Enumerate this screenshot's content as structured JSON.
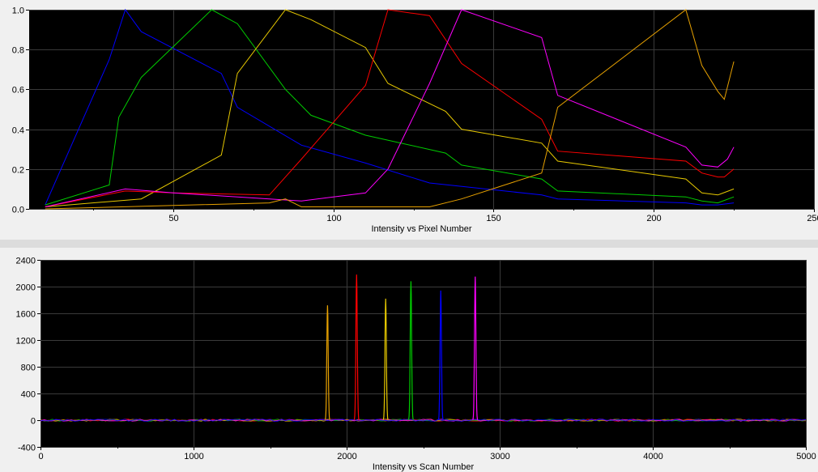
{
  "chart_data": [
    {
      "type": "line",
      "title": "",
      "xlabel": "Intensity vs Pixel Number",
      "ylabel": "",
      "xlim": [
        5,
        250
      ],
      "ylim": [
        0,
        1.0
      ],
      "xticks": [
        50,
        100,
        150,
        200,
        250
      ],
      "xtick_labels": [
        "50",
        "100",
        "150",
        "200",
        "250"
      ],
      "yticks": [
        0,
        0.2,
        0.4,
        0.6,
        0.8,
        1.0
      ],
      "ytick_labels": [
        "0.0",
        "0.2",
        "0.4",
        "0.6",
        "0.8",
        "1.0"
      ],
      "grid": true,
      "series": [
        {
          "color": "#0000ff",
          "x": [
            10,
            30,
            35,
            40,
            65,
            70,
            90,
            110,
            130,
            165,
            170,
            210,
            215,
            220,
            225
          ],
          "y": [
            0.02,
            0.75,
            1.0,
            0.89,
            0.68,
            0.51,
            0.32,
            0.23,
            0.13,
            0.07,
            0.05,
            0.03,
            0.02,
            0.02,
            0.03
          ]
        },
        {
          "color": "#00cc00",
          "x": [
            10,
            30,
            33,
            40,
            62,
            70,
            85,
            93,
            110,
            135,
            140,
            165,
            170,
            210,
            215,
            220,
            225
          ],
          "y": [
            0.02,
            0.12,
            0.46,
            0.66,
            1.0,
            0.93,
            0.6,
            0.47,
            0.37,
            0.28,
            0.22,
            0.15,
            0.09,
            0.06,
            0.04,
            0.03,
            0.06
          ]
        },
        {
          "color": "#e6c800",
          "x": [
            10,
            40,
            65,
            70,
            85,
            93,
            110,
            117,
            135,
            140,
            165,
            170,
            210,
            215,
            220,
            225
          ],
          "y": [
            0.01,
            0.05,
            0.27,
            0.68,
            1.0,
            0.95,
            0.81,
            0.63,
            0.49,
            0.4,
            0.33,
            0.24,
            0.15,
            0.08,
            0.07,
            0.1
          ]
        },
        {
          "color": "#ff0000",
          "x": [
            10,
            35,
            50,
            80,
            90,
            110,
            117,
            130,
            140,
            165,
            170,
            210,
            215,
            220,
            222,
            225
          ],
          "y": [
            0.01,
            0.09,
            0.08,
            0.07,
            0.25,
            0.62,
            1.0,
            0.97,
            0.73,
            0.45,
            0.29,
            0.24,
            0.18,
            0.16,
            0.16,
            0.2
          ]
        },
        {
          "color": "#ff00ff",
          "x": [
            10,
            35,
            50,
            80,
            90,
            110,
            117,
            130,
            140,
            165,
            170,
            210,
            215,
            220,
            223,
            225
          ],
          "y": [
            0.01,
            0.1,
            0.08,
            0.05,
            0.04,
            0.08,
            0.2,
            0.63,
            1.0,
            0.86,
            0.57,
            0.31,
            0.22,
            0.21,
            0.25,
            0.31
          ]
        },
        {
          "color": "#e6a000",
          "x": [
            10,
            80,
            85,
            90,
            110,
            130,
            140,
            165,
            170,
            210,
            215,
            220,
            222,
            225
          ],
          "y": [
            0.0,
            0.03,
            0.05,
            0.01,
            0.01,
            0.01,
            0.05,
            0.18,
            0.51,
            1.0,
            0.72,
            0.59,
            0.55,
            0.74
          ]
        }
      ]
    },
    {
      "type": "line",
      "title": "",
      "xlabel": "Intensity vs Scan Number",
      "ylabel": "",
      "xlim": [
        0,
        5000
      ],
      "ylim": [
        -400,
        2400
      ],
      "xticks": [
        0,
        1000,
        2000,
        3000,
        4000,
        5000
      ],
      "xtick_labels": [
        "0",
        "1000",
        "2000",
        "3000",
        "4000",
        "5000"
      ],
      "yticks": [
        -400,
        0,
        400,
        800,
        1200,
        1600,
        2000,
        2400
      ],
      "ytick_labels": [
        "-400",
        "0",
        "400",
        "800",
        "1200",
        "1600",
        "2000",
        "2400"
      ],
      "grid": true,
      "baseline_colors": [
        "#ff0000",
        "#00cc00",
        "#e6a000",
        "#ff00ff",
        "#0000ff"
      ],
      "peaks": [
        {
          "color": "#e6a000",
          "center": 1875,
          "height": 1720
        },
        {
          "color": "#ff0000",
          "center": 2065,
          "height": 2180
        },
        {
          "color": "#e6c800",
          "center": 2255,
          "height": 1820
        },
        {
          "color": "#00cc00",
          "center": 2420,
          "height": 2080
        },
        {
          "color": "#0000ff",
          "center": 2615,
          "height": 1940
        },
        {
          "color": "#ff00ff",
          "center": 2840,
          "height": 2150
        }
      ]
    }
  ]
}
